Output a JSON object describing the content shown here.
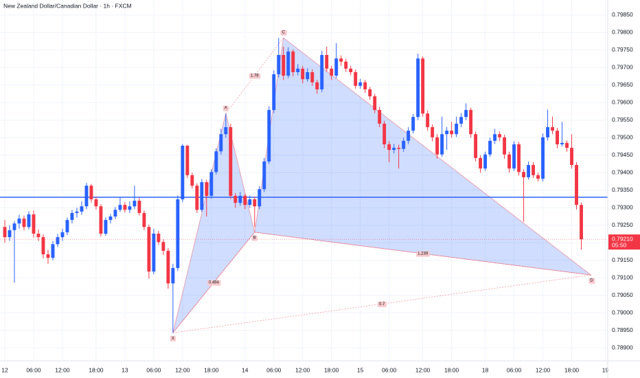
{
  "chart_data": {
    "type": "candlestick",
    "title": "New Zealand Dollar/Canadian Dollar · 1h · FXCM",
    "up_color": "#2962ff",
    "down_color": "#f23645",
    "grid": true,
    "xlim": [
      -1,
      125.5
    ],
    "xticks": [
      {
        "value": 0,
        "label": "12"
      },
      {
        "value": 6,
        "label": "06:00"
      },
      {
        "value": 12,
        "label": "12:00"
      },
      {
        "value": 19,
        "label": "18:00"
      },
      {
        "value": 25,
        "label": "13"
      },
      {
        "value": 31,
        "label": "06:00"
      },
      {
        "value": 37,
        "label": "12:00"
      },
      {
        "value": 43,
        "label": "18:00"
      },
      {
        "value": 50,
        "label": "14"
      },
      {
        "value": 56,
        "label": "06:00"
      },
      {
        "value": 62,
        "label": "12:00"
      },
      {
        "value": 68,
        "label": "18:00"
      },
      {
        "value": 74,
        "label": "15"
      },
      {
        "value": 80,
        "label": "06:00"
      },
      {
        "value": 87,
        "label": "12:00"
      },
      {
        "value": 93,
        "label": "18:00"
      },
      {
        "value": 100,
        "label": "18"
      },
      {
        "value": 106,
        "label": "06:00"
      },
      {
        "value": 112,
        "label": "12:00"
      },
      {
        "value": 118,
        "label": "18:00"
      },
      {
        "value": 125,
        "label": "19"
      }
    ],
    "ylim": [
      0.78863,
      0.79893
    ],
    "yticks": [
      {
        "value": 0.789,
        "label": "0.78900"
      },
      {
        "value": 0.7895,
        "label": "0.78950"
      },
      {
        "value": 0.79,
        "label": "0.79000"
      },
      {
        "value": 0.7905,
        "label": "0.79050"
      },
      {
        "value": 0.791,
        "label": "0.79100"
      },
      {
        "value": 0.7915,
        "label": "0.79150"
      },
      {
        "value": 0.792,
        "label": "0.79200"
      },
      {
        "value": 0.7925,
        "label": "0.79250"
      },
      {
        "value": 0.793,
        "label": "0.79300"
      },
      {
        "value": 0.7935,
        "label": "0.79350"
      },
      {
        "value": 0.794,
        "label": "0.79400"
      },
      {
        "value": 0.7945,
        "label": "0.79450"
      },
      {
        "value": 0.795,
        "label": "0.79500"
      },
      {
        "value": 0.7955,
        "label": "0.79550"
      },
      {
        "value": 0.796,
        "label": "0.79600"
      },
      {
        "value": 0.7965,
        "label": "0.79650"
      },
      {
        "value": 0.797,
        "label": "0.79700"
      },
      {
        "value": 0.7975,
        "label": "0.79750"
      },
      {
        "value": 0.798,
        "label": "0.79800"
      },
      {
        "value": 0.7985,
        "label": "0.79850"
      }
    ],
    "hline": {
      "value": 0.7933,
      "color": "#2962ff"
    },
    "last": {
      "value": 0.7921,
      "label": "0.79210",
      "countdown": "05:50"
    },
    "candles": [
      [
        0.79245,
        0.79265,
        0.792,
        0.79216
      ],
      [
        0.79216,
        0.7925,
        0.79205,
        0.79236
      ],
      [
        0.79236,
        0.79262,
        0.79086,
        0.79255
      ],
      [
        0.79255,
        0.7928,
        0.7924,
        0.79269
      ],
      [
        0.79269,
        0.79278,
        0.79235,
        0.79245
      ],
      [
        0.79245,
        0.7929,
        0.79238,
        0.79281
      ],
      [
        0.79281,
        0.79292,
        0.79215,
        0.79226
      ],
      [
        0.79226,
        0.79238,
        0.79205,
        0.79216
      ],
      [
        0.79216,
        0.79224,
        0.79155,
        0.79167
      ],
      [
        0.79167,
        0.7918,
        0.7914,
        0.79157
      ],
      [
        0.79157,
        0.79205,
        0.7915,
        0.79196
      ],
      [
        0.79196,
        0.79225,
        0.79188,
        0.79216
      ],
      [
        0.79216,
        0.7924,
        0.79205,
        0.7923
      ],
      [
        0.7923,
        0.79272,
        0.79222,
        0.79265
      ],
      [
        0.79265,
        0.79294,
        0.79255,
        0.79285
      ],
      [
        0.79285,
        0.793,
        0.79272,
        0.79289
      ],
      [
        0.79289,
        0.79318,
        0.7928,
        0.79304
      ],
      [
        0.79304,
        0.79371,
        0.79296,
        0.79363
      ],
      [
        0.79363,
        0.79368,
        0.79315,
        0.79324
      ],
      [
        0.79324,
        0.79332,
        0.79295,
        0.79304
      ],
      [
        0.79304,
        0.7931,
        0.79218,
        0.79226
      ],
      [
        0.79226,
        0.79272,
        0.7922,
        0.79265
      ],
      [
        0.79265,
        0.79282,
        0.79255,
        0.79275
      ],
      [
        0.79275,
        0.79302,
        0.79268,
        0.79294
      ],
      [
        0.79294,
        0.7933,
        0.79288,
        0.79308
      ],
      [
        0.79308,
        0.79316,
        0.79286,
        0.79294
      ],
      [
        0.79294,
        0.79318,
        0.79285,
        0.79304
      ],
      [
        0.79304,
        0.79363,
        0.79296,
        0.7932
      ],
      [
        0.7932,
        0.79328,
        0.79278,
        0.79285
      ],
      [
        0.79285,
        0.79292,
        0.79236,
        0.79245
      ],
      [
        0.79245,
        0.79252,
        0.79098,
        0.79118
      ],
      [
        0.79118,
        0.7924,
        0.7911,
        0.79226
      ],
      [
        0.79226,
        0.79234,
        0.79194,
        0.79202
      ],
      [
        0.79202,
        0.7921,
        0.79165,
        0.79177
      ],
      [
        0.79177,
        0.79185,
        0.79069,
        0.79084
      ],
      [
        0.79084,
        0.7914,
        0.78943,
        0.79128
      ],
      [
        0.79128,
        0.79335,
        0.7912,
        0.79324
      ],
      [
        0.79324,
        0.79482,
        0.79316,
        0.79477
      ],
      [
        0.79477,
        0.7948,
        0.79385,
        0.79393
      ],
      [
        0.79393,
        0.794,
        0.79355,
        0.79363
      ],
      [
        0.79363,
        0.7937,
        0.79285,
        0.79294
      ],
      [
        0.79294,
        0.79382,
        0.79288,
        0.79373
      ],
      [
        0.79373,
        0.7938,
        0.79275,
        0.79334
      ],
      [
        0.79334,
        0.7941,
        0.79326,
        0.79402
      ],
      [
        0.79402,
        0.7947,
        0.79395,
        0.79461
      ],
      [
        0.79461,
        0.79525,
        0.79452,
        0.7951
      ],
      [
        0.7951,
        0.79569,
        0.795,
        0.7953
      ],
      [
        0.7953,
        0.7954,
        0.79325,
        0.79334
      ],
      [
        0.79334,
        0.79342,
        0.793,
        0.79314
      ],
      [
        0.79314,
        0.79345,
        0.79306,
        0.79334
      ],
      [
        0.79334,
        0.7934,
        0.79296,
        0.79308
      ],
      [
        0.79308,
        0.79335,
        0.793,
        0.79324
      ],
      [
        0.79324,
        0.79332,
        0.79245,
        0.79304
      ],
      [
        0.79304,
        0.79362,
        0.79296,
        0.79353
      ],
      [
        0.79353,
        0.79442,
        0.79345,
        0.79432
      ],
      [
        0.79432,
        0.7959,
        0.79425,
        0.79579
      ],
      [
        0.79579,
        0.79692,
        0.7957,
        0.79681
      ],
      [
        0.79681,
        0.79785,
        0.79672,
        0.79736
      ],
      [
        0.79736,
        0.7976,
        0.79665,
        0.79677
      ],
      [
        0.79677,
        0.79758,
        0.7967,
        0.79746
      ],
      [
        0.79746,
        0.79752,
        0.79675,
        0.79687
      ],
      [
        0.79687,
        0.7971,
        0.79678,
        0.79697
      ],
      [
        0.79697,
        0.79705,
        0.79655,
        0.79667
      ],
      [
        0.79667,
        0.79698,
        0.7966,
        0.79687
      ],
      [
        0.79687,
        0.79695,
        0.79648,
        0.79658
      ],
      [
        0.79658,
        0.79665,
        0.79625,
        0.79638
      ],
      [
        0.79638,
        0.79748,
        0.7963,
        0.79736
      ],
      [
        0.79736,
        0.7976,
        0.79688,
        0.79697
      ],
      [
        0.79697,
        0.79705,
        0.79665,
        0.79677
      ],
      [
        0.79677,
        0.7977,
        0.7967,
        0.79726
      ],
      [
        0.79726,
        0.79735,
        0.79705,
        0.79717
      ],
      [
        0.79717,
        0.79725,
        0.79688,
        0.79697
      ],
      [
        0.79697,
        0.79705,
        0.79678,
        0.79687
      ],
      [
        0.79687,
        0.79695,
        0.7964,
        0.79648
      ],
      [
        0.79648,
        0.79668,
        0.7964,
        0.79658
      ],
      [
        0.79658,
        0.79665,
        0.79628,
        0.79638
      ],
      [
        0.79638,
        0.79645,
        0.79608,
        0.79618
      ],
      [
        0.79618,
        0.79625,
        0.7957,
        0.79579
      ],
      [
        0.79579,
        0.79588,
        0.7953,
        0.7954
      ],
      [
        0.7954,
        0.79548,
        0.7947,
        0.79481
      ],
      [
        0.79481,
        0.7949,
        0.7943,
        0.79465
      ],
      [
        0.79465,
        0.79482,
        0.79455,
        0.79471
      ],
      [
        0.79471,
        0.7948,
        0.79412,
        0.79468
      ],
      [
        0.79468,
        0.795,
        0.7946,
        0.79491
      ],
      [
        0.79491,
        0.7953,
        0.79482,
        0.7952
      ],
      [
        0.7952,
        0.79568,
        0.79512,
        0.79559
      ],
      [
        0.79559,
        0.7974,
        0.7955,
        0.79726
      ],
      [
        0.79726,
        0.79732,
        0.7956,
        0.79569
      ],
      [
        0.79569,
        0.79578,
        0.7952,
        0.7953
      ],
      [
        0.7953,
        0.79538,
        0.7949,
        0.79501
      ],
      [
        0.79501,
        0.7951,
        0.7944,
        0.79452
      ],
      [
        0.79452,
        0.7956,
        0.79445,
        0.7951
      ],
      [
        0.7951,
        0.7953,
        0.79465,
        0.7952
      ],
      [
        0.7952,
        0.79545,
        0.795,
        0.7951
      ],
      [
        0.7951,
        0.7956,
        0.79502,
        0.7954
      ],
      [
        0.7954,
        0.7957,
        0.7953,
        0.79559
      ],
      [
        0.79559,
        0.79598,
        0.7955,
        0.79579
      ],
      [
        0.79579,
        0.79586,
        0.795,
        0.7951
      ],
      [
        0.7951,
        0.79518,
        0.79432,
        0.79442
      ],
      [
        0.79442,
        0.7945,
        0.794,
        0.79412
      ],
      [
        0.79412,
        0.7946,
        0.79405,
        0.79452
      ],
      [
        0.79452,
        0.795,
        0.79445,
        0.79491
      ],
      [
        0.79491,
        0.79525,
        0.79482,
        0.7951
      ],
      [
        0.7951,
        0.79518,
        0.7949,
        0.79501
      ],
      [
        0.79501,
        0.79508,
        0.7944,
        0.79452
      ],
      [
        0.79452,
        0.7946,
        0.794,
        0.79412
      ],
      [
        0.79412,
        0.7949,
        0.79405,
        0.79481
      ],
      [
        0.79481,
        0.79488,
        0.79392,
        0.79402
      ],
      [
        0.79402,
        0.7941,
        0.7926,
        0.79387
      ],
      [
        0.79387,
        0.79432,
        0.7938,
        0.79422
      ],
      [
        0.79422,
        0.7943,
        0.79385,
        0.79393
      ],
      [
        0.79393,
        0.794,
        0.79375,
        0.79383
      ],
      [
        0.79383,
        0.79512,
        0.79375,
        0.79501
      ],
      [
        0.79501,
        0.7958,
        0.79492,
        0.7953
      ],
      [
        0.7953,
        0.7956,
        0.7951,
        0.7952
      ],
      [
        0.7952,
        0.79528,
        0.7947,
        0.79481
      ],
      [
        0.79481,
        0.79545,
        0.79475,
        0.79485
      ],
      [
        0.79485,
        0.79492,
        0.7946,
        0.79471
      ],
      [
        0.79471,
        0.7951,
        0.79412,
        0.79422
      ],
      [
        0.79422,
        0.7943,
        0.79295,
        0.79308
      ],
      [
        0.79308,
        0.79315,
        0.7918,
        0.7921
      ]
    ],
    "pattern": {
      "color": "#f23645",
      "fill": "#2962ff",
      "points": [
        {
          "label": "X",
          "x": 35,
          "price": 0.78943
        },
        {
          "label": "A",
          "x": 46,
          "price": 0.79569
        },
        {
          "label": "B",
          "x": 52,
          "price": 0.7923
        },
        {
          "label": "C",
          "x": 58,
          "price": 0.79785
        },
        {
          "label": "D",
          "x": 122,
          "price": 0.79108
        }
      ],
      "ratios": {
        "XB": 0.494,
        "AC": 1.78,
        "BD": 1.239,
        "XD": 0.7
      }
    }
  }
}
